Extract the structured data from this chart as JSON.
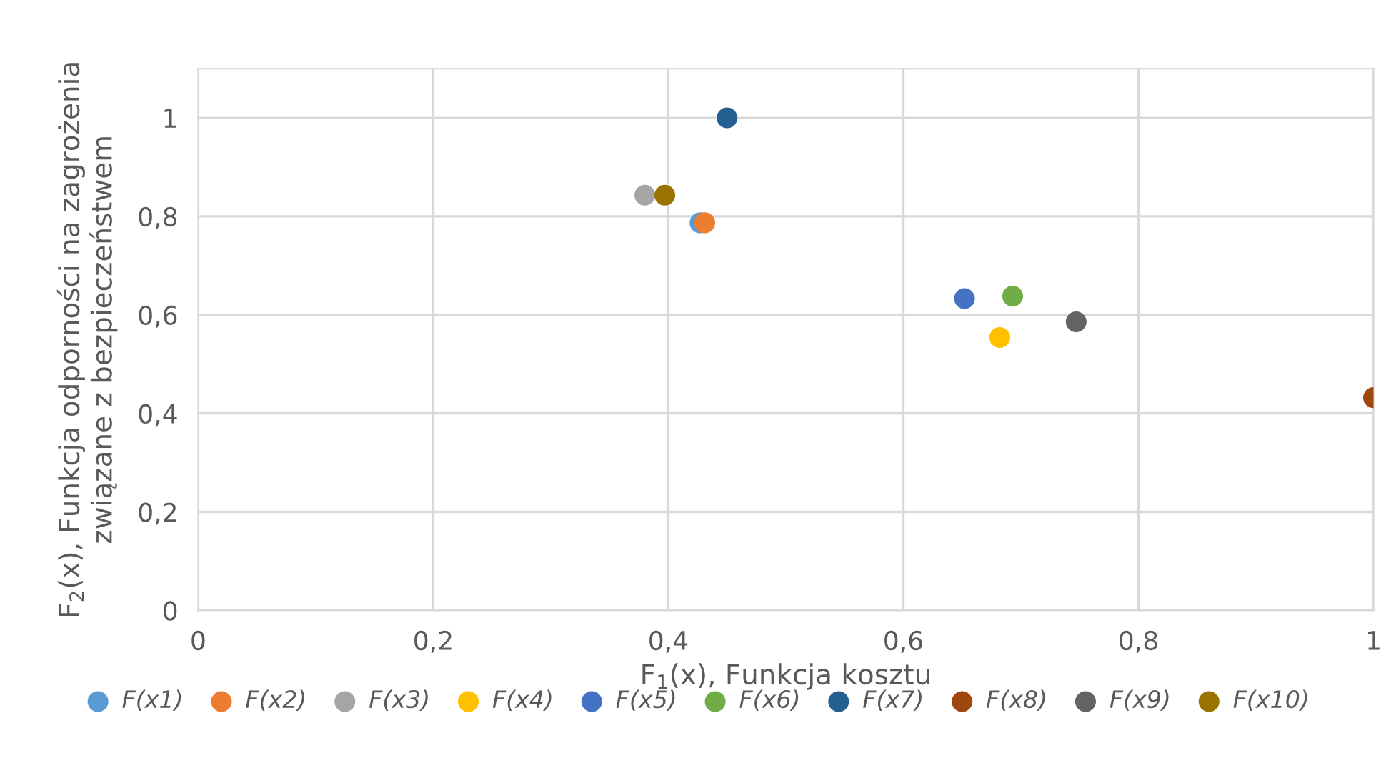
{
  "chart_data": {
    "type": "scatter",
    "xlabel": "F$_{1}$(x), Funkcja kosztu",
    "ylabel": "F$_{2}$(x), Funkcja odporności na zagrożenia\nzwiązane z bezpieczeństwem",
    "xlim": [
      0,
      1
    ],
    "ylim": [
      0,
      1.1
    ],
    "xticks": [
      0,
      {
        "value": 0.2,
        "label": "0,2"
      },
      {
        "value": 0.4,
        "label": "0,4"
      },
      {
        "value": 0.6,
        "label": "0,6"
      },
      {
        "value": 0.8,
        "label": "0,8"
      },
      1
    ],
    "yticks": [
      0,
      {
        "value": 0.2,
        "label": "0,2"
      },
      {
        "value": 0.4,
        "label": "0,4"
      },
      {
        "value": 0.6,
        "label": "0,6"
      },
      {
        "value": 0.8,
        "label": "0,8"
      },
      1
    ],
    "grid": true,
    "legend": "bottom",
    "marker": "circle",
    "series": [
      {
        "name": "F(x1)",
        "color": "#5b9bd5",
        "x": [
          0.427
        ],
        "values": [
          0.787
        ]
      },
      {
        "name": "F(x2)",
        "color": "#ed7d31",
        "x": [
          0.431
        ],
        "values": [
          0.787
        ]
      },
      {
        "name": "F(x3)",
        "color": "#a5a5a5",
        "x": [
          0.38
        ],
        "values": [
          0.843
        ]
      },
      {
        "name": "F(x4)",
        "color": "#ffc000",
        "x": [
          0.682
        ],
        "values": [
          0.554
        ]
      },
      {
        "name": "F(x5)",
        "color": "#4472c4",
        "x": [
          0.652
        ],
        "values": [
          0.633
        ]
      },
      {
        "name": "F(x6)",
        "color": "#70ad47",
        "x": [
          0.693
        ],
        "values": [
          0.638
        ]
      },
      {
        "name": "F(x7)",
        "color": "#255e91",
        "x": [
          0.45
        ],
        "values": [
          1.0
        ]
      },
      {
        "name": "F(x8)",
        "color": "#9e480e",
        "x": [
          1.0
        ],
        "values": [
          0.432
        ]
      },
      {
        "name": "F(x9)",
        "color": "#636363",
        "x": [
          0.747
        ],
        "values": [
          0.586
        ]
      },
      {
        "name": "F(x10)",
        "color": "#997300",
        "x": [
          0.397
        ],
        "values": [
          0.843
        ]
      }
    ]
  }
}
